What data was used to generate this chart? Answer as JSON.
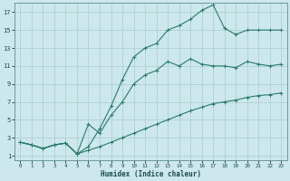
{
  "xlabel": "Humidex (Indice chaleur)",
  "bg_color": "#cce8ec",
  "grid_color": "#aacccc",
  "line_color": "#2a7a6a",
  "xlim": [
    -0.5,
    23.5
  ],
  "ylim": [
    0.5,
    18.0
  ],
  "xticks": [
    0,
    1,
    2,
    3,
    4,
    5,
    6,
    7,
    8,
    9,
    10,
    11,
    12,
    13,
    14,
    15,
    16,
    17,
    18,
    19,
    20,
    21,
    22,
    23
  ],
  "yticks": [
    1,
    3,
    5,
    7,
    9,
    11,
    13,
    15,
    17
  ],
  "line1_x": [
    0,
    1,
    2,
    3,
    4,
    5,
    6,
    7,
    8,
    9,
    10,
    11,
    12,
    13,
    14,
    15,
    16,
    17,
    18,
    19,
    20,
    21,
    22,
    23
  ],
  "line1_y": [
    2.5,
    2.2,
    1.8,
    2.2,
    2.4,
    1.2,
    1.6,
    2.0,
    2.5,
    3.0,
    3.5,
    4.0,
    4.5,
    5.0,
    5.5,
    6.0,
    6.4,
    6.8,
    7.0,
    7.2,
    7.5,
    7.7,
    7.8,
    8.0
  ],
  "line2_x": [
    0,
    1,
    2,
    3,
    4,
    5,
    6,
    7,
    8,
    9,
    10,
    11,
    12,
    13,
    14,
    15,
    16,
    17,
    18,
    19,
    20,
    21,
    22,
    23
  ],
  "line2_y": [
    2.5,
    2.2,
    1.8,
    2.2,
    2.4,
    1.2,
    4.5,
    3.5,
    5.5,
    7.0,
    9.0,
    10.0,
    10.5,
    11.5,
    11.0,
    11.8,
    11.2,
    11.0,
    11.0,
    10.8,
    11.5,
    11.2,
    11.0,
    11.2
  ],
  "line3_x": [
    0,
    1,
    2,
    3,
    4,
    5,
    6,
    7,
    8,
    9,
    10,
    11,
    12,
    13,
    14,
    15,
    16,
    17,
    18,
    19,
    20,
    21,
    22,
    23
  ],
  "line3_y": [
    2.5,
    2.2,
    1.8,
    2.2,
    2.4,
    1.2,
    2.0,
    4.0,
    6.5,
    9.5,
    12.0,
    13.0,
    13.5,
    15.0,
    15.5,
    16.2,
    17.2,
    17.8,
    15.2,
    14.5,
    15.0,
    15.0,
    15.0,
    15.0
  ]
}
